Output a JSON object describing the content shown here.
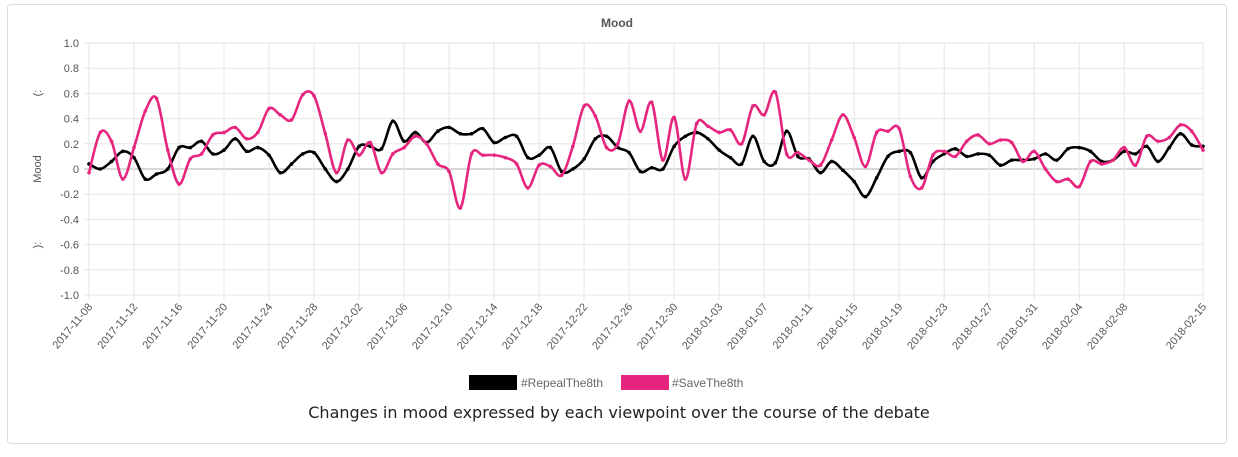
{
  "caption": "Changes in mood expressed by each viewpoint over the course of the debate",
  "chart_data": {
    "type": "line",
    "title": "Mood",
    "ylabel": "Mood",
    "y_face_labels": {
      "top": "(:",
      "bottom": "):"
    },
    "ylim": [
      -1.0,
      1.0
    ],
    "yticks": [
      "1.0",
      "0.8",
      "0.6",
      "0.4",
      "0.2",
      "0",
      "-0.2",
      "-0.4",
      "-0.6",
      "-0.8",
      "-1.0"
    ],
    "xticks": [
      "2017-11-08",
      "2017-11-12",
      "2017-11-16",
      "2017-11-20",
      "2017-11-24",
      "2017-11-28",
      "2017-12-02",
      "2017-12-06",
      "2017-12-10",
      "2017-12-14",
      "2017-12-18",
      "2017-12-22",
      "2017-12-26",
      "2017-12-30",
      "2018-01-03",
      "2018-01-07",
      "2018-01-11",
      "2018-01-15",
      "2018-01-19",
      "2018-01-23",
      "2018-01-27",
      "2018-01-31",
      "2018-02-04",
      "2018-02-08",
      "2018-02-15"
    ],
    "x_start": "2017-11-08",
    "x_end": "2018-02-15",
    "grid": true,
    "legend_position": "bottom",
    "series": [
      {
        "name": "#RepealThe8th",
        "color": "#000000",
        "values": [
          0.04,
          0.0,
          0.06,
          0.14,
          0.09,
          -0.08,
          -0.04,
          0.0,
          0.17,
          0.17,
          0.22,
          0.12,
          0.15,
          0.24,
          0.14,
          0.17,
          0.11,
          -0.03,
          0.04,
          0.12,
          0.13,
          0.0,
          -0.1,
          0.0,
          0.18,
          0.18,
          0.16,
          0.38,
          0.22,
          0.29,
          0.21,
          0.3,
          0.33,
          0.28,
          0.28,
          0.32,
          0.21,
          0.25,
          0.26,
          0.09,
          0.11,
          0.17,
          -0.02,
          0.0,
          0.08,
          0.24,
          0.26,
          0.17,
          0.13,
          -0.02,
          0.01,
          0.0,
          0.18,
          0.26,
          0.29,
          0.24,
          0.15,
          0.09,
          0.04,
          0.26,
          0.06,
          0.05,
          0.3,
          0.1,
          0.08,
          -0.03,
          0.06,
          -0.01,
          -0.1,
          -0.22,
          -0.07,
          0.1,
          0.14,
          0.13,
          -0.07,
          0.06,
          0.12,
          0.16,
          0.1,
          0.12,
          0.11,
          0.03,
          0.07,
          0.07,
          0.08,
          0.12,
          0.07,
          0.16,
          0.17,
          0.14,
          0.06,
          0.07,
          0.14,
          0.12,
          0.18,
          0.06,
          0.17,
          0.28,
          0.19,
          0.18
        ]
      },
      {
        "name": "#SaveThe8th",
        "color": "#e6257e",
        "values": [
          -0.03,
          0.29,
          0.22,
          -0.08,
          0.17,
          0.46,
          0.56,
          0.15,
          -0.12,
          0.08,
          0.12,
          0.27,
          0.29,
          0.33,
          0.24,
          0.29,
          0.48,
          0.43,
          0.39,
          0.59,
          0.58,
          0.28,
          -0.03,
          0.23,
          0.11,
          0.21,
          -0.03,
          0.12,
          0.17,
          0.26,
          0.2,
          0.04,
          -0.02,
          -0.31,
          0.12,
          0.11,
          0.11,
          0.09,
          0.04,
          -0.15,
          0.03,
          0.02,
          -0.05,
          0.18,
          0.5,
          0.42,
          0.17,
          0.2,
          0.54,
          0.3,
          0.53,
          0.07,
          0.41,
          -0.08,
          0.36,
          0.34,
          0.29,
          0.31,
          0.2,
          0.5,
          0.43,
          0.61,
          0.12,
          0.13,
          0.07,
          0.03,
          0.23,
          0.43,
          0.25,
          0.02,
          0.29,
          0.3,
          0.32,
          -0.06,
          -0.15,
          0.11,
          0.14,
          0.1,
          0.22,
          0.27,
          0.2,
          0.23,
          0.21,
          0.06,
          0.14,
          0.0,
          -0.1,
          -0.08,
          -0.14,
          0.06,
          0.04,
          0.07,
          0.17,
          0.03,
          0.26,
          0.22,
          0.25,
          0.35,
          0.3,
          0.15
        ]
      }
    ]
  }
}
